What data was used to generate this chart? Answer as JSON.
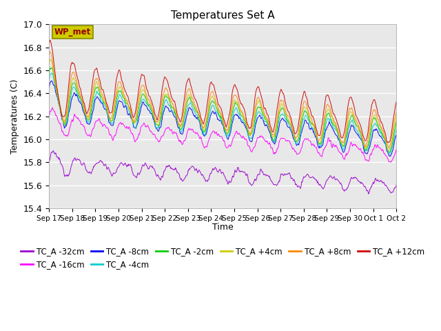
{
  "title": "Temperatures Set A",
  "xlabel": "Time",
  "ylabel": "Temperatures (C)",
  "ylim": [
    15.4,
    17.0
  ],
  "yticks": [
    15.4,
    15.6,
    15.8,
    16.0,
    16.2,
    16.4,
    16.6,
    16.8,
    17.0
  ],
  "xtick_labels": [
    "Sep 17",
    "Sep 18",
    "Sep 19",
    "Sep 20",
    "Sep 21",
    "Sep 22",
    "Sep 23",
    "Sep 24",
    "Sep 25",
    "Sep 26",
    "Sep 27",
    "Sep 28",
    "Sep 29",
    "Sep 30",
    "Oct 1",
    "Oct 2"
  ],
  "series": [
    {
      "label": "TC_A -32cm",
      "color": "#9900CC",
      "base": 15.79,
      "amp": 0.05,
      "trend": -0.013,
      "noise": 0.018,
      "phase": 0.0
    },
    {
      "label": "TC_A -16cm",
      "color": "#FF00FF",
      "base": 16.14,
      "amp": 0.06,
      "trend": -0.018,
      "noise": 0.018,
      "phase": 0.3
    },
    {
      "label": "TC_A -8cm",
      "color": "#0000EE",
      "base": 16.3,
      "amp": 0.1,
      "trend": -0.022,
      "noise": 0.015,
      "phase": 0.5
    },
    {
      "label": "TC_A -4cm",
      "color": "#00CCCC",
      "base": 16.33,
      "amp": 0.11,
      "trend": -0.022,
      "noise": 0.013,
      "phase": 0.6
    },
    {
      "label": "TC_A -2cm",
      "color": "#00CC00",
      "base": 16.36,
      "amp": 0.12,
      "trend": -0.022,
      "noise": 0.013,
      "phase": 0.7
    },
    {
      "label": "TC_A +4cm",
      "color": "#CCCC00",
      "base": 16.38,
      "amp": 0.13,
      "trend": -0.022,
      "noise": 0.013,
      "phase": 0.8
    },
    {
      "label": "TC_A +8cm",
      "color": "#FF8800",
      "base": 16.41,
      "amp": 0.14,
      "trend": -0.022,
      "noise": 0.013,
      "phase": 0.9
    },
    {
      "label": "TC_A +12cm",
      "color": "#CC0000",
      "base": 16.47,
      "amp": 0.16,
      "trend": -0.022,
      "noise": 0.013,
      "phase": 1.0
    }
  ],
  "wp_met_box_color": "#CCCC00",
  "wp_met_text_color": "#990000",
  "background_color": "#E8E8E8",
  "n_points": 720,
  "legend_font_size": 8.5,
  "title_font_size": 11
}
